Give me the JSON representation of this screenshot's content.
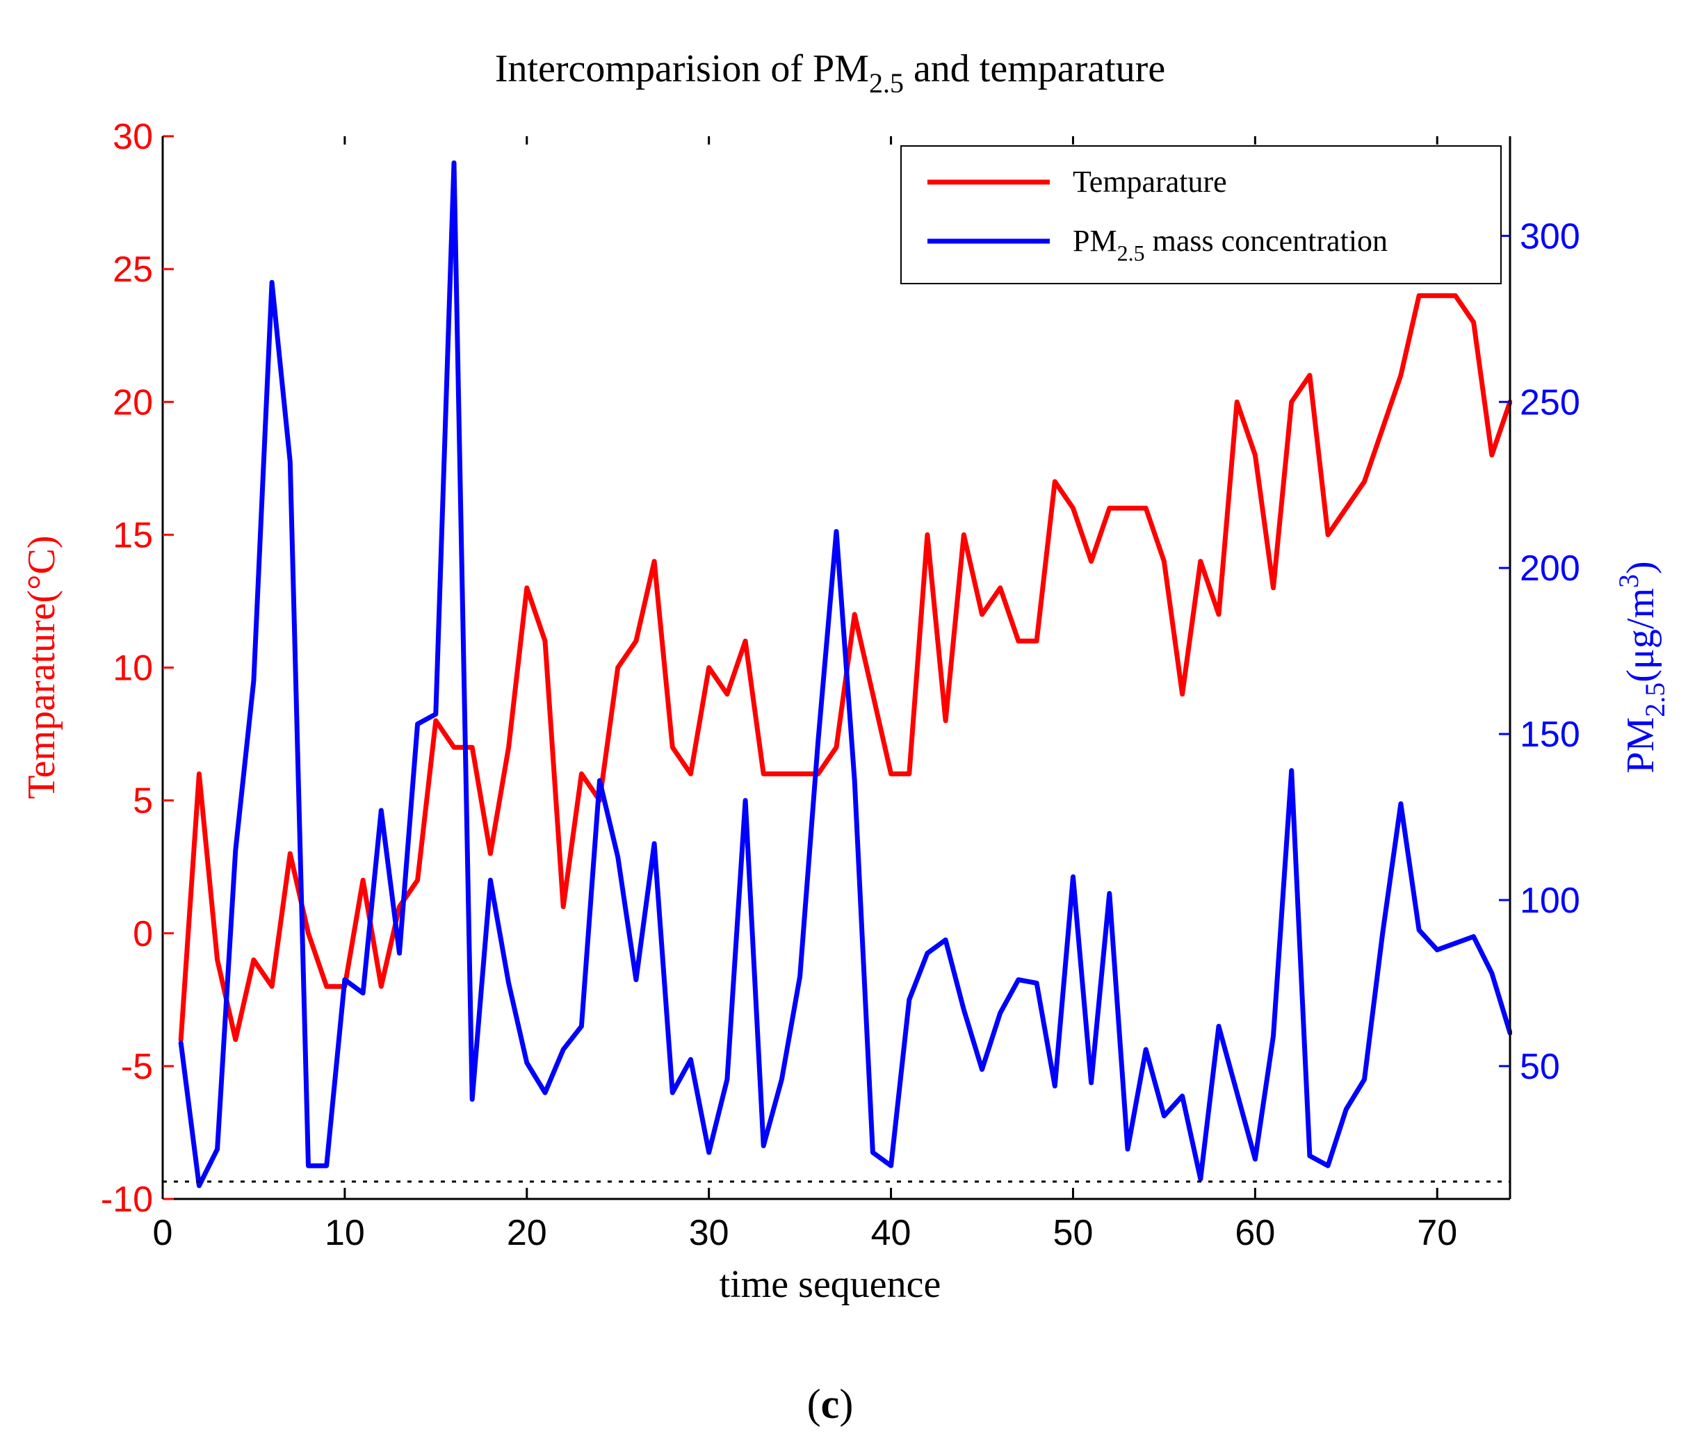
{
  "chart_data": {
    "type": "line",
    "title": {
      "main": "Intercomparision of PM",
      "sub": "2.5",
      "tail": " and temparature"
    },
    "xlabel": "time sequence",
    "caption": {
      "open": "(",
      "letter": "c",
      "close": ")"
    },
    "x": {
      "range": [
        0,
        74
      ],
      "ticks": [
        0,
        10,
        20,
        30,
        40,
        50,
        60,
        70
      ]
    },
    "y_left": {
      "label": "Temparature(°C)",
      "range": [
        -10,
        30
      ],
      "ticks": [
        -10,
        -5,
        0,
        5,
        10,
        15,
        20,
        25,
        30
      ],
      "color": "#ff0000"
    },
    "y_right": {
      "label_main": "PM",
      "label_sub": "2.5",
      "label_units": "(μg/m",
      "label_sup": "3",
      "label_close": ")",
      "range": [
        10,
        330
      ],
      "ticks": [
        50,
        100,
        150,
        200,
        250,
        300
      ],
      "color": "#0000ff"
    },
    "legend": {
      "position": "top-right",
      "items": [
        {
          "label": "Temparature",
          "color": "#ff0000"
        },
        {
          "label_main": "PM",
          "label_sub": "2.5",
          "label_tail": " mass concentration",
          "color": "#0000ff"
        }
      ]
    },
    "series": [
      {
        "name": "Temparature",
        "axis": "left",
        "color": "#ff0000",
        "x": [
          1,
          2,
          3,
          4,
          5,
          6,
          7,
          8,
          9,
          10,
          11,
          12,
          13,
          14,
          15,
          16,
          17,
          18,
          19,
          20,
          21,
          22,
          23,
          24,
          25,
          26,
          27,
          28,
          29,
          30,
          31,
          32,
          33,
          34,
          35,
          36,
          37,
          38,
          39,
          40,
          41,
          42,
          43,
          44,
          45,
          46,
          47,
          48,
          49,
          50,
          51,
          52,
          53,
          54,
          55,
          56,
          57,
          58,
          59,
          60,
          61,
          62,
          63,
          64,
          65,
          66,
          67,
          68,
          69,
          70,
          71,
          72,
          73,
          74
        ],
        "values": [
          -4,
          6,
          -1,
          -4,
          -1,
          -2,
          3,
          0,
          -2,
          -2,
          2,
          -2,
          1,
          2,
          8,
          7,
          7,
          3,
          7,
          13,
          11,
          1,
          6,
          5,
          10,
          11,
          14,
          7,
          6,
          10,
          9,
          11,
          6,
          6,
          6,
          6,
          7,
          12,
          9,
          6,
          6,
          15,
          8,
          15,
          12,
          13,
          11,
          11,
          17,
          16,
          14,
          16,
          16,
          16,
          14,
          9,
          14,
          12,
          20,
          18,
          13,
          20,
          21,
          15,
          16,
          17,
          19,
          21,
          24,
          24,
          24,
          23,
          18,
          20
        ]
      },
      {
        "name": "PM2.5 mass concentration",
        "axis": "right",
        "color": "#0000ff",
        "x": [
          1,
          2,
          3,
          4,
          5,
          6,
          7,
          8,
          9,
          10,
          11,
          12,
          13,
          14,
          15,
          16,
          17,
          18,
          19,
          20,
          21,
          22,
          23,
          24,
          25,
          26,
          27,
          28,
          29,
          30,
          31,
          32,
          33,
          34,
          35,
          36,
          37,
          38,
          39,
          40,
          41,
          42,
          43,
          44,
          45,
          46,
          47,
          48,
          49,
          50,
          51,
          52,
          53,
          54,
          55,
          56,
          57,
          58,
          59,
          60,
          61,
          62,
          63,
          64,
          65,
          66,
          67,
          68,
          69,
          70,
          71,
          72,
          73,
          74
        ],
        "values": [
          57,
          14,
          25,
          115,
          166,
          286,
          232,
          20,
          20,
          76,
          72,
          127,
          84,
          153,
          156,
          322,
          40,
          106,
          75,
          51,
          42,
          55,
          62,
          136,
          113,
          76,
          117,
          42,
          52,
          24,
          46,
          130,
          26,
          46,
          77,
          148,
          211,
          136,
          24,
          20,
          70,
          84,
          88,
          67,
          49,
          66,
          76,
          75,
          44,
          107,
          45,
          102,
          25,
          55,
          35,
          41,
          16,
          62,
          42,
          22,
          59,
          139,
          23,
          20,
          37,
          46,
          90,
          129,
          91,
          85,
          87,
          89,
          78,
          60
        ]
      }
    ]
  }
}
